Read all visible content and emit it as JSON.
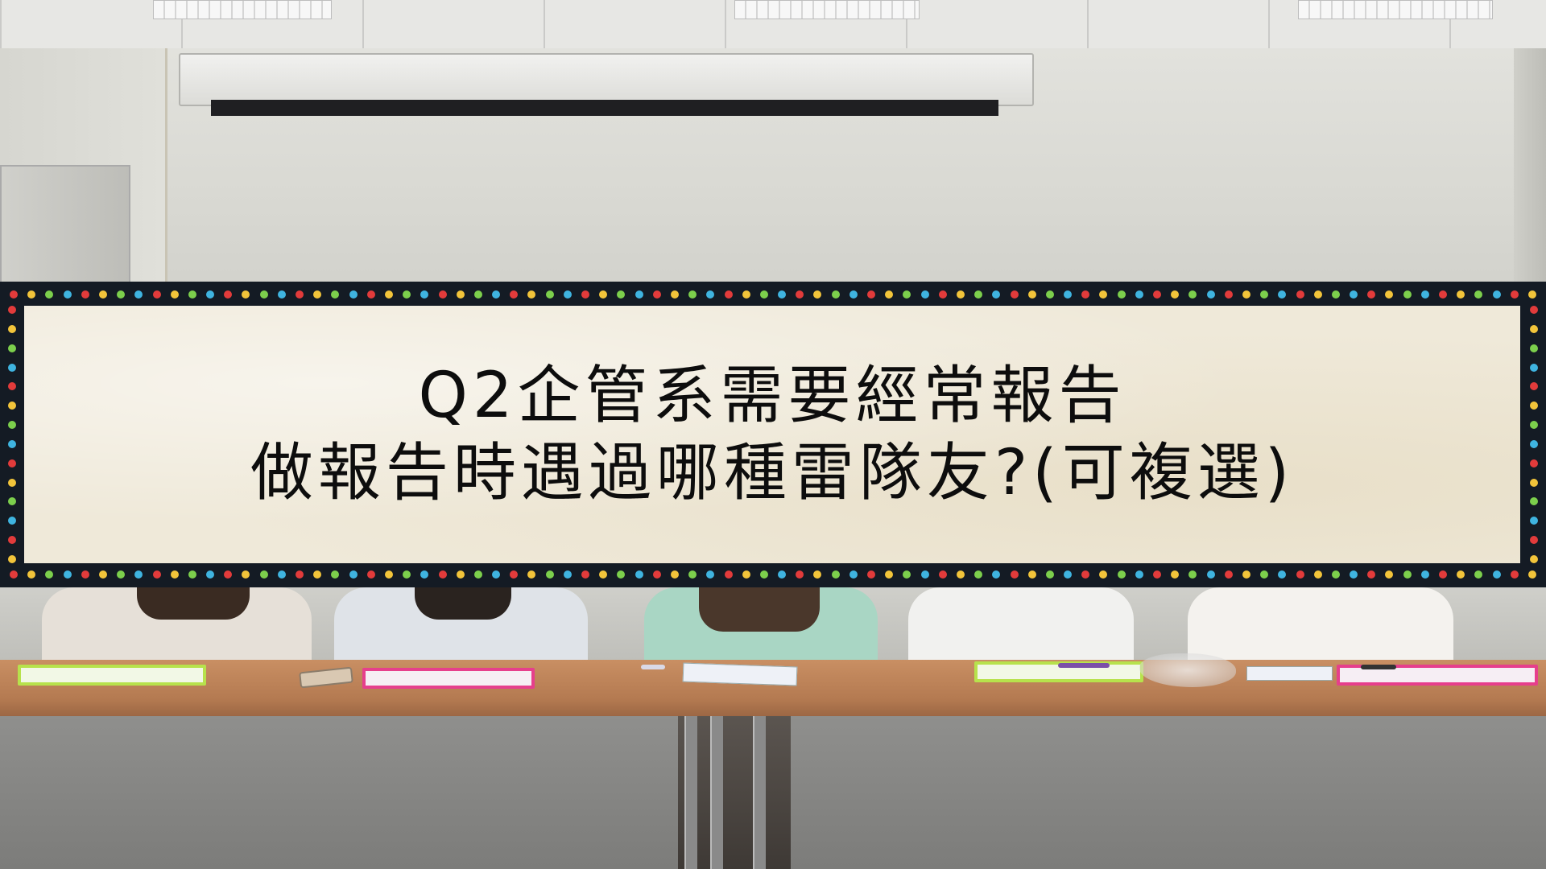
{
  "banner": {
    "line1": "Q2企管系需要經常報告",
    "line2": "做報告時遇過哪種雷隊友?(可複選)",
    "frame_color": "#141b24",
    "paper_color": "#efe9d9",
    "dot_colors": [
      "#e23b3b",
      "#f2c43a",
      "#7ccf4c",
      "#3fb4e0"
    ]
  },
  "scene": {
    "setting": "classroom",
    "table_color": "#c98f63"
  }
}
